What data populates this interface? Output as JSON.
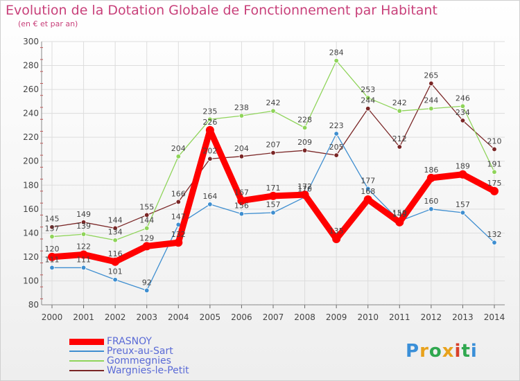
{
  "title": "Evolution de la Dotation Globale de Fonctionnement par Habitant",
  "subtitle": "(en € et par an)",
  "logo": "Proxiti",
  "chart_data": {
    "type": "line",
    "title": "Evolution de la Dotation Globale de Fonctionnement par Habitant",
    "ylabel": "(en € et par an)",
    "xlabel": "",
    "categories": [
      "2000",
      "2001",
      "2002",
      "2003",
      "2004",
      "2005",
      "2006",
      "2007",
      "2008",
      "2009",
      "2010",
      "2011",
      "2012",
      "2013",
      "2014"
    ],
    "ylim": [
      80,
      300
    ],
    "yticks": [
      80,
      100,
      120,
      140,
      160,
      180,
      200,
      220,
      240,
      260,
      280,
      300
    ],
    "grid": true,
    "legend": "bottom-left",
    "series": [
      {
        "name": "FRASNOY",
        "color": "#ff0000",
        "values": [
          120,
          122,
          116,
          129,
          132,
          226,
          167,
          171,
          172,
          135,
          168,
          149,
          186,
          189,
          175
        ]
      },
      {
        "name": "Preux-au-Sart",
        "color": "#3e8ed0",
        "values": [
          111,
          111,
          101,
          92,
          147,
          164,
          156,
          157,
          170,
          223,
          177,
          150,
          160,
          157,
          132
        ]
      },
      {
        "name": "Gommegnies",
        "color": "#8fd45a",
        "values": [
          137,
          139,
          134,
          144,
          204,
          235,
          238,
          242,
          228,
          284,
          253,
          242,
          244,
          246,
          191
        ]
      },
      {
        "name": "Wargnies-le-Petit",
        "color": "#7a2626",
        "values": [
          145,
          149,
          144,
          155,
          166,
          202,
          204,
          207,
          209,
          205,
          244,
          212,
          265,
          234,
          210
        ]
      }
    ]
  }
}
